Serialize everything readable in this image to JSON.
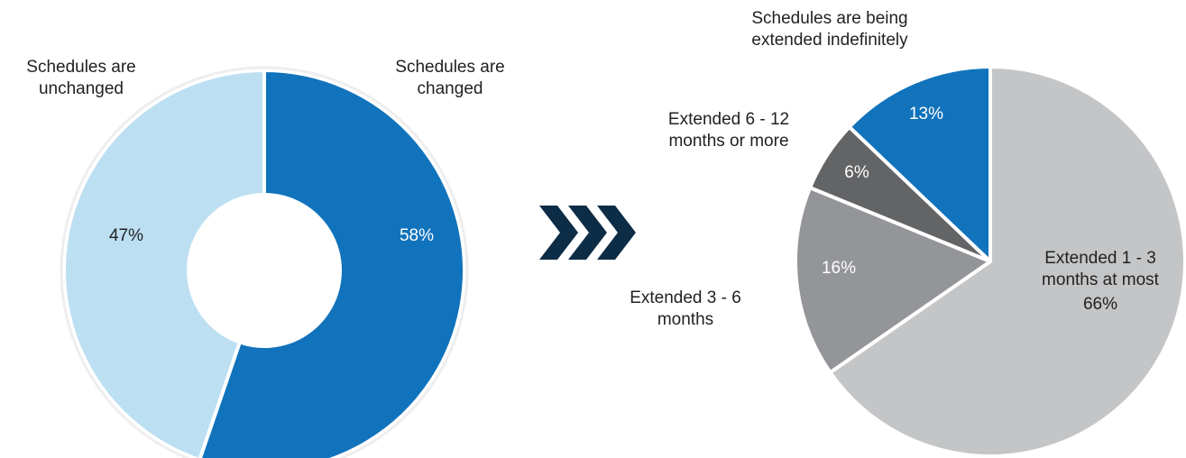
{
  "chart_data": [
    {
      "type": "donut",
      "categories": [
        "Schedules are\nchanged",
        "Schedules are\nunchanged"
      ],
      "values": [
        58,
        47
      ],
      "value_labels": [
        "58%",
        "47%"
      ],
      "colors": [
        "#1173bc",
        "#bcdff2"
      ]
    },
    {
      "type": "pie",
      "categories": [
        "Extended 1 - 3\nmonths at most",
        "Extended 3 - 6\nmonths",
        "Extended 6 - 12\nmonths or more",
        "Schedules are being\nextended indefinitely"
      ],
      "values": [
        66,
        16,
        6,
        13
      ],
      "value_labels": [
        "66%",
        "16%",
        "6%",
        "13%"
      ],
      "colors": [
        "#c4c5c7",
        "#939598",
        "#636466",
        "#1173bc"
      ]
    }
  ]
}
